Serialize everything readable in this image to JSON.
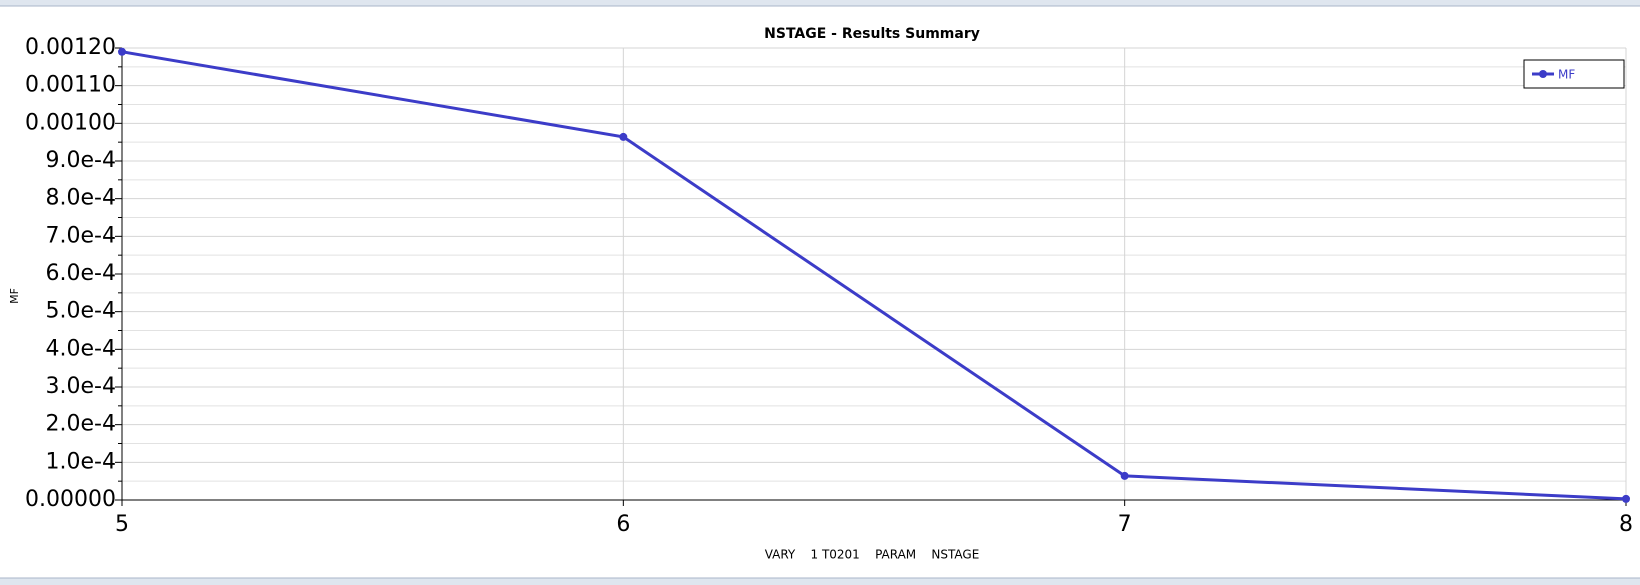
{
  "chart_data": {
    "type": "line",
    "title": "NSTAGE - Results Summary",
    "x_label": "VARY    1 T0201    PARAM    NSTAGE",
    "y_label": "MF",
    "x": [
      5,
      6,
      7,
      8
    ],
    "series": [
      {
        "name": "MF",
        "color": "#3c3cc8",
        "values": [
          0.00119,
          0.000964,
          6.4e-05,
          3e-06
        ]
      }
    ],
    "xlim": [
      5,
      8
    ],
    "xticks": [
      5,
      6,
      7,
      8
    ],
    "ylim": [
      0,
      0.0012
    ],
    "yticks": [
      {
        "value": 0,
        "label": "0.00000"
      },
      {
        "value": 0.0001,
        "label": "1.0e-4"
      },
      {
        "value": 0.0002,
        "label": "2.0e-4"
      },
      {
        "value": 0.0003,
        "label": "3.0e-4"
      },
      {
        "value": 0.0004,
        "label": "4.0e-4"
      },
      {
        "value": 0.0005,
        "label": "5.0e-4"
      },
      {
        "value": 0.0006,
        "label": "6.0e-4"
      },
      {
        "value": 0.0007,
        "label": "7.0e-4"
      },
      {
        "value": 0.0008,
        "label": "8.0e-4"
      },
      {
        "value": 0.0009,
        "label": "9.0e-4"
      },
      {
        "value": 0.001,
        "label": "0.00100"
      },
      {
        "value": 0.0011,
        "label": "0.00110"
      },
      {
        "value": 0.0012,
        "label": "0.00120"
      }
    ],
    "grid": true,
    "legend": "top-right"
  }
}
